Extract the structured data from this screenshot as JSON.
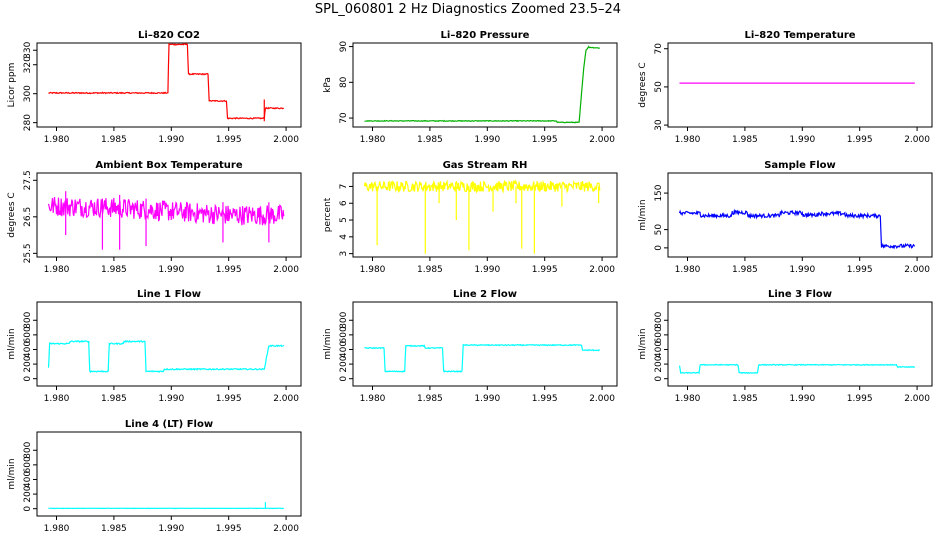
{
  "page_title": "SPL_060801  2 Hz Diagnostics Zoomed 23.5–24",
  "chart_data": [
    {
      "type": "line",
      "title": "Li–820 CO2",
      "ylabel": "Licor ppm",
      "color": "#ff0000",
      "xlim": [
        1.9783,
        2.0013
      ],
      "ylim": [
        277,
        335
      ],
      "xticks": [
        "1.980",
        "1.985",
        "1.990",
        "1.995",
        "2.000"
      ],
      "xtick_values": [
        1.98,
        1.985,
        1.99,
        1.995,
        2.0
      ],
      "yticks": [
        "280",
        "300",
        "320",
        "330"
      ],
      "ytick_values": [
        280,
        300,
        320,
        330
      ],
      "noise": 0.4,
      "points": [
        [
          1.9793,
          300.5
        ],
        [
          1.9897,
          300.5
        ],
        [
          1.9898,
          334.0
        ],
        [
          1.9914,
          334.0
        ],
        [
          1.9915,
          313.5
        ],
        [
          1.9932,
          313.5
        ],
        [
          1.9933,
          295.0
        ],
        [
          1.9948,
          295.0
        ],
        [
          1.9949,
          283.0
        ],
        [
          1.9981,
          283.0
        ],
        [
          1.9982,
          290.0
        ],
        [
          1.9998,
          290.0
        ]
      ],
      "spikes": [
        [
          1.9981,
          281.0,
          296.0
        ]
      ]
    },
    {
      "type": "line",
      "title": "Li–820 Pressure",
      "ylabel": "kPa",
      "color": "#00b000",
      "xlim": [
        1.9783,
        2.0013
      ],
      "ylim": [
        67.5,
        91
      ],
      "xticks": [
        "1.980",
        "1.985",
        "1.990",
        "1.995",
        "2.000"
      ],
      "xtick_values": [
        1.98,
        1.985,
        1.99,
        1.995,
        2.0
      ],
      "yticks": [
        "70",
        "80",
        "90"
      ],
      "ytick_values": [
        70,
        80,
        90
      ],
      "noise": 0.1,
      "points": [
        [
          1.9793,
          69.2
        ],
        [
          1.996,
          69.2
        ],
        [
          1.9961,
          68.8
        ],
        [
          1.998,
          68.8
        ],
        [
          1.9984,
          84.0
        ],
        [
          1.9986,
          89.0
        ],
        [
          1.9988,
          89.8
        ],
        [
          1.9998,
          89.6
        ]
      ],
      "spikes": []
    },
    {
      "type": "line",
      "title": "Li–820 Temperature",
      "ylabel": "degrees C",
      "color": "#ff00ff",
      "xlim": [
        1.9783,
        2.0013
      ],
      "ylim": [
        29,
        73
      ],
      "xticks": [
        "1.980",
        "1.985",
        "1.990",
        "1.995",
        "2.000"
      ],
      "xtick_values": [
        1.98,
        1.985,
        1.99,
        1.995,
        2.0
      ],
      "yticks": [
        "30",
        "50",
        "70"
      ],
      "ytick_values": [
        30,
        50,
        70
      ],
      "noise": 0,
      "points": [
        [
          1.9793,
          52
        ],
        [
          1.9998,
          52
        ]
      ],
      "spikes": []
    },
    {
      "type": "line",
      "title": "Ambient Box Temperature",
      "ylabel": "degrees C",
      "color": "#ff00ff",
      "xlim": [
        1.9783,
        2.0013
      ],
      "ylim": [
        25.4,
        27.7
      ],
      "xticks": [
        "1.980",
        "1.985",
        "1.990",
        "1.995",
        "2.000"
      ],
      "xtick_values": [
        1.98,
        1.985,
        1.99,
        1.995,
        2.0
      ],
      "yticks": [
        "25.5",
        "26.5",
        "27.5"
      ],
      "ytick_values": [
        25.5,
        26.5,
        27.5
      ],
      "noise": 0.28,
      "points": [
        [
          1.9793,
          26.8
        ],
        [
          1.985,
          26.75
        ],
        [
          1.99,
          26.65
        ],
        [
          1.995,
          26.55
        ],
        [
          1.9998,
          26.55
        ]
      ],
      "spikes": [
        [
          1.9808,
          26.0,
          27.2
        ],
        [
          1.984,
          25.6,
          27.0
        ],
        [
          1.9855,
          25.6,
          27.1
        ],
        [
          1.9878,
          25.7,
          27.0
        ],
        [
          1.9945,
          25.8,
          26.9
        ],
        [
          1.9985,
          25.8,
          26.9
        ]
      ]
    },
    {
      "type": "line",
      "title": "Gas Stream RH",
      "ylabel": "percent",
      "color": "#ffff00",
      "xlim": [
        1.9783,
        2.0013
      ],
      "ylim": [
        2.8,
        7.8
      ],
      "xticks": [
        "1.980",
        "1.985",
        "1.990",
        "1.995",
        "2.000"
      ],
      "xtick_values": [
        1.98,
        1.985,
        1.99,
        1.995,
        2.0
      ],
      "yticks": [
        "3",
        "4",
        "5",
        "6",
        "7"
      ],
      "ytick_values": [
        3,
        4,
        5,
        6,
        7
      ],
      "noise": 0.32,
      "points": [
        [
          1.9793,
          7.0
        ],
        [
          1.9998,
          7.0
        ]
      ],
      "spikes": [
        [
          1.9804,
          3.5,
          7.0
        ],
        [
          1.9846,
          3.0,
          7.0
        ],
        [
          1.9858,
          6.0,
          7.0
        ],
        [
          1.9873,
          5.0,
          7.0
        ],
        [
          1.9884,
          3.2,
          7.0
        ],
        [
          1.9905,
          5.5,
          7.0
        ],
        [
          1.9925,
          6.0,
          7.0
        ],
        [
          1.993,
          3.3,
          7.0
        ],
        [
          1.9941,
          3.0,
          7.0
        ],
        [
          1.9965,
          5.8,
          7.0
        ],
        [
          1.9997,
          6.0,
          7.0
        ]
      ]
    },
    {
      "type": "line",
      "title": "Sample Flow",
      "ylabel": "ml/min",
      "color": "#0000ff",
      "xlim": [
        1.9783,
        2.0013
      ],
      "ylim": [
        -25,
        205
      ],
      "xticks": [
        "1.980",
        "1.985",
        "1.990",
        "1.995",
        "2.000"
      ],
      "xtick_values": [
        1.98,
        1.985,
        1.99,
        1.995,
        2.0
      ],
      "yticks": [
        "0",
        "50",
        "150"
      ],
      "ytick_values": [
        0,
        50,
        150
      ],
      "noise": 5,
      "points": [
        [
          1.9793,
          95
        ],
        [
          1.9811,
          95
        ],
        [
          1.9812,
          88
        ],
        [
          1.9838,
          88
        ],
        [
          1.9839,
          97
        ],
        [
          1.9852,
          97
        ],
        [
          1.9853,
          88
        ],
        [
          1.988,
          88
        ],
        [
          1.9881,
          96
        ],
        [
          1.99,
          96
        ],
        [
          1.9901,
          90
        ],
        [
          1.9913,
          90
        ],
        [
          1.9914,
          94
        ],
        [
          1.9937,
          94
        ],
        [
          1.9938,
          88
        ],
        [
          1.9968,
          88
        ],
        [
          1.9969,
          5
        ],
        [
          1.9998,
          5
        ]
      ],
      "spikes": []
    },
    {
      "type": "line",
      "title": "Line 1 Flow",
      "ylabel": "ml/min",
      "color": "#00ffff",
      "xlim": [
        1.9783,
        2.0013
      ],
      "ylim": [
        -100,
        1050
      ],
      "xticks": [
        "1.980",
        "1.985",
        "1.990",
        "1.995",
        "2.000"
      ],
      "xtick_values": [
        1.98,
        1.985,
        1.99,
        1.995,
        2.0
      ],
      "yticks": [
        "0",
        "200",
        "400",
        "600",
        "800"
      ],
      "ytick_values": [
        0,
        200,
        400,
        600,
        800
      ],
      "noise": 8,
      "points": [
        [
          1.9793,
          150
        ],
        [
          1.9794,
          480
        ],
        [
          1.9811,
          480
        ],
        [
          1.9812,
          510
        ],
        [
          1.9828,
          510
        ],
        [
          1.9829,
          100
        ],
        [
          1.9845,
          100
        ],
        [
          1.9846,
          480
        ],
        [
          1.9858,
          480
        ],
        [
          1.9859,
          510
        ],
        [
          1.9877,
          510
        ],
        [
          1.9878,
          100
        ],
        [
          1.9893,
          100
        ],
        [
          1.9894,
          130
        ],
        [
          1.9981,
          130
        ],
        [
          1.9985,
          450
        ],
        [
          1.9998,
          450
        ]
      ],
      "spikes": []
    },
    {
      "type": "line",
      "title": "Line 2 Flow",
      "ylabel": "ml/min",
      "color": "#00ffff",
      "xlim": [
        1.9783,
        2.0013
      ],
      "ylim": [
        -100,
        1050
      ],
      "xticks": [
        "1.980",
        "1.985",
        "1.990",
        "1.995",
        "2.000"
      ],
      "xtick_values": [
        1.98,
        1.985,
        1.99,
        1.995,
        2.0
      ],
      "yticks": [
        "0",
        "200",
        "400",
        "600",
        "800"
      ],
      "ytick_values": [
        0,
        200,
        400,
        600,
        800
      ],
      "noise": 6,
      "points": [
        [
          1.9793,
          420
        ],
        [
          1.981,
          420
        ],
        [
          1.9811,
          100
        ],
        [
          1.9828,
          100
        ],
        [
          1.9829,
          450
        ],
        [
          1.9845,
          450
        ],
        [
          1.9846,
          420
        ],
        [
          1.9861,
          420
        ],
        [
          1.9862,
          100
        ],
        [
          1.9878,
          100
        ],
        [
          1.9879,
          460
        ],
        [
          1.9982,
          460
        ],
        [
          1.9983,
          390
        ],
        [
          1.9998,
          390
        ]
      ],
      "spikes": []
    },
    {
      "type": "line",
      "title": "Line 3 Flow",
      "ylabel": "ml/min",
      "color": "#00ffff",
      "xlim": [
        1.9783,
        2.0013
      ],
      "ylim": [
        -100,
        1050
      ],
      "xticks": [
        "1.980",
        "1.985",
        "1.990",
        "1.995",
        "2.000"
      ],
      "xtick_values": [
        1.98,
        1.985,
        1.99,
        1.995,
        2.0
      ],
      "yticks": [
        "0",
        "200",
        "400",
        "600",
        "800"
      ],
      "ytick_values": [
        0,
        200,
        400,
        600,
        800
      ],
      "noise": 5,
      "points": [
        [
          1.9793,
          180
        ],
        [
          1.9794,
          80
        ],
        [
          1.981,
          80
        ],
        [
          1.9811,
          190
        ],
        [
          1.9844,
          190
        ],
        [
          1.9845,
          80
        ],
        [
          1.9861,
          80
        ],
        [
          1.9862,
          190
        ],
        [
          1.9982,
          190
        ],
        [
          1.9983,
          160
        ],
        [
          1.9998,
          160
        ]
      ],
      "spikes": []
    },
    {
      "type": "line",
      "title": "Line 4 (LT) Flow",
      "ylabel": "ml/min",
      "color": "#00ffff",
      "xlim": [
        1.9783,
        2.0013
      ],
      "ylim": [
        -100,
        1050
      ],
      "xticks": [
        "1.980",
        "1.985",
        "1.990",
        "1.995",
        "2.000"
      ],
      "xtick_values": [
        1.98,
        1.985,
        1.99,
        1.995,
        2.0
      ],
      "yticks": [
        "0",
        "200",
        "400",
        "600",
        "800"
      ],
      "ytick_values": [
        0,
        200,
        400,
        600,
        800
      ],
      "noise": 2,
      "points": [
        [
          1.9793,
          5
        ],
        [
          1.9998,
          5
        ]
      ],
      "spikes": [
        [
          1.9982,
          5,
          90
        ]
      ]
    }
  ]
}
